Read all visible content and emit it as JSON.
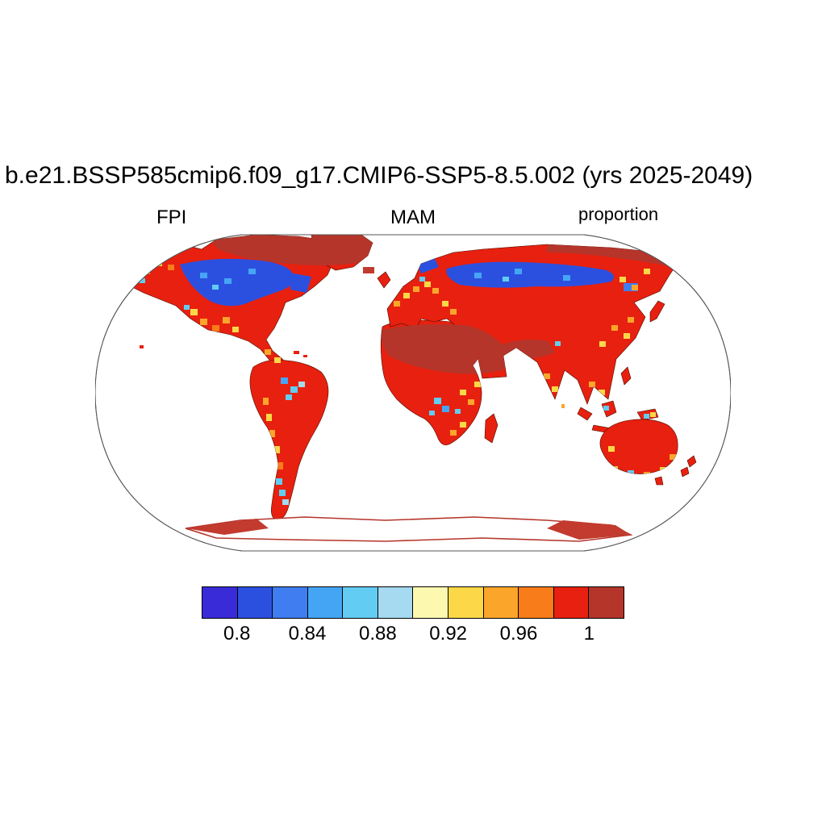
{
  "header": {
    "title": "b.e21.BSSP585cmip6.f09_g17.CMIP6-SSP5-8.5.002 (yrs 2025-2049)",
    "left_label": "FPI",
    "center_label": "MAM",
    "right_label": "proportion"
  },
  "chart_data": {
    "type": "heatmap",
    "title": "b.e21.BSSP585cmip6.f09_g17.CMIP6-SSP5-8.5.002 (yrs 2025-2049)",
    "variable": "FPI",
    "season": "MAM",
    "units": "proportion",
    "projection": "Robinson world map, ocean masked white, land filled by value",
    "colorbar": {
      "orientation": "horizontal",
      "levels": [
        0.8,
        0.82,
        0.84,
        0.86,
        0.88,
        0.9,
        0.92,
        0.94,
        0.96,
        0.98,
        1.0
      ],
      "tick_labels": [
        "0.8",
        "0.84",
        "0.88",
        "0.92",
        "0.96",
        "1"
      ],
      "colors": [
        "#3a2bd9",
        "#2b50e0",
        "#3f7df0",
        "#45a5f5",
        "#63ccf2",
        "#a5daf0",
        "#fdf8b0",
        "#fcd848",
        "#fba62b",
        "#f87c19",
        "#e8200f",
        "#b5352b"
      ]
    },
    "map_summary": {
      "regions": [
        {
          "region": "Most global land (tropics, subtropics, mid-latitudes)",
          "value": "0.98 to 1 (red)"
        },
        {
          "region": "Sahara, Arabian Peninsula, Middle East, Iran, Arctic coasts, Greenland margins",
          "value": "about 1 or above (dark red)"
        },
        {
          "region": "Central and eastern Canada boreal belt",
          "value": "0.8 to 0.9 (blue)"
        },
        {
          "region": "Northern Siberia boreal belt and Scandinavia",
          "value": "0.8 to 0.9 (blue)"
        },
        {
          "region": "Western US, Europe, Congo basin, East Africa, SE Asia, southern Australia, southern Chile",
          "value": "0.88 to 0.98 mottled (cyan, yellow, orange)"
        },
        {
          "region": "Antarctica interior and ocean",
          "value": "no data (white)"
        }
      ]
    }
  }
}
